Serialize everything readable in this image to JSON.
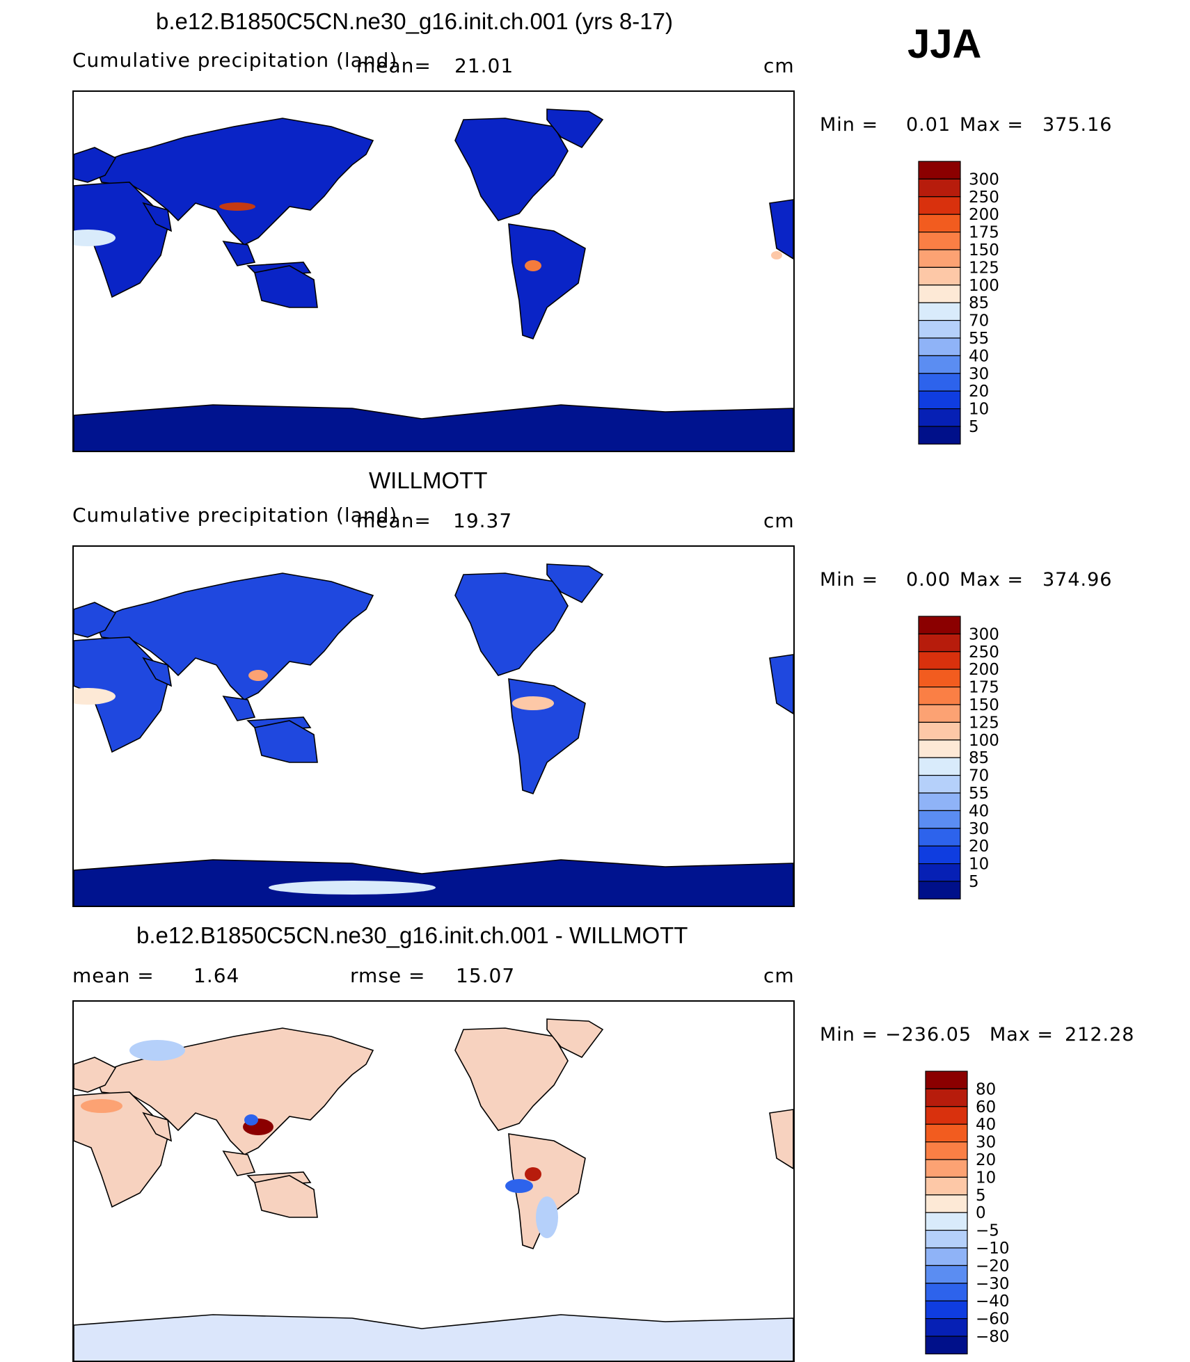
{
  "season": "JJA",
  "panels": [
    {
      "title": "b.e12.B1850C5CN.ne30_g16.init.ch.001 (yrs 8-17)",
      "left_label": "Cumulative precipitation (land)",
      "center_label": "mean=",
      "center_value": "21.01",
      "right_label": "cm",
      "min_label": "Min =",
      "min_value": "0.01",
      "max_label": "Max =",
      "max_value": "375.16",
      "levels": [
        "300",
        "250",
        "200",
        "175",
        "150",
        "125",
        "100",
        "85",
        "70",
        "55",
        "40",
        "30",
        "20",
        "10",
        "5"
      ],
      "colors": [
        "#8b0000",
        "#b71c0c",
        "#d9310d",
        "#f25c1f",
        "#fa7f45",
        "#fca273",
        "#fdc8a7",
        "#fde9d6",
        "#d9ebfb",
        "#b5d0fa",
        "#8fb3f7",
        "#5b8df2",
        "#2d63ec",
        "#0f3de0",
        "#0620b5",
        "#00108a"
      ],
      "fill_land": "#0a24c6",
      "fill_antarctica": "#00138f"
    },
    {
      "title": "WILLMOTT",
      "left_label": "Cumulative precipitation (land)",
      "center_label": "mean=",
      "center_value": "19.37",
      "right_label": "cm",
      "min_label": "Min =",
      "min_value": "0.00",
      "max_label": "Max =",
      "max_value": "374.96",
      "levels": [
        "300",
        "250",
        "200",
        "175",
        "150",
        "125",
        "100",
        "85",
        "70",
        "55",
        "40",
        "30",
        "20",
        "10",
        "5"
      ],
      "colors": [
        "#8b0000",
        "#b71c0c",
        "#d9310d",
        "#f25c1f",
        "#fa7f45",
        "#fca273",
        "#fdc8a7",
        "#fde9d6",
        "#d9ebfb",
        "#b5d0fa",
        "#8fb3f7",
        "#5b8df2",
        "#2d63ec",
        "#0f3de0",
        "#0620b5",
        "#00108a"
      ],
      "fill_land": "#1f48df",
      "fill_antarctica": "#00138f"
    },
    {
      "title": "b.e12.B1850C5CN.ne30_g16.init.ch.001 - WILLMOTT",
      "left_label": "mean =",
      "left_value": "1.64",
      "center_label": "rmse =",
      "center_value": "15.07",
      "right_label": "cm",
      "min_label": "Min =",
      "min_value": "−236.05",
      "max_label": "Max =",
      "max_value": "212.28",
      "levels": [
        "80",
        "60",
        "40",
        "30",
        "20",
        "10",
        "5",
        "0",
        "−5",
        "−10",
        "−20",
        "−30",
        "−40",
        "−60",
        "−80"
      ],
      "colors": [
        "#8b0000",
        "#b71c0c",
        "#d9310d",
        "#f25c1f",
        "#fa7f45",
        "#fca273",
        "#fdc8a7",
        "#fde9d6",
        "#d9ebfb",
        "#b5d0fa",
        "#8fb3f7",
        "#5b8df2",
        "#2d63ec",
        "#0f3de0",
        "#0620b5",
        "#00108a"
      ],
      "fill_land": "#f7d2bf",
      "fill_antarctica": "#dbe6fb"
    }
  ]
}
